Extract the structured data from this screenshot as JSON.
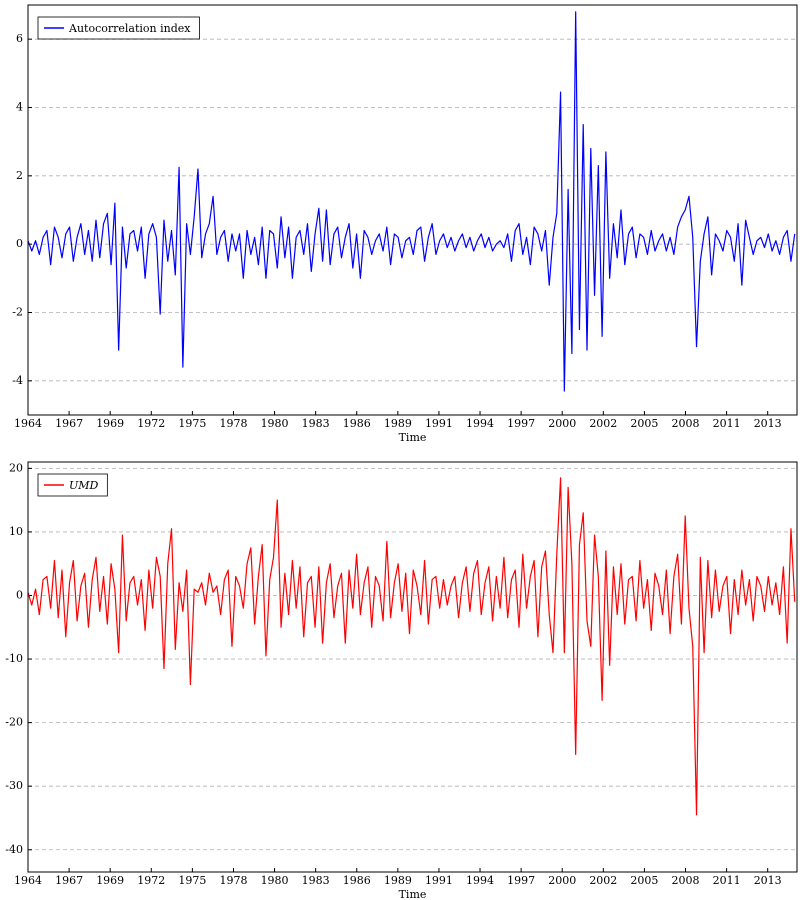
{
  "chart_data": [
    {
      "type": "line",
      "xlabel": "Time",
      "legend": "upper left",
      "grid": true,
      "xlim": [
        1964,
        2014.9
      ],
      "ylim": [
        -5,
        7
      ],
      "yticks": [
        -4,
        -2,
        0,
        2,
        4,
        6
      ],
      "xticks": [
        {
          "value": 1964,
          "label": "1964"
        },
        {
          "value": 1966.72,
          "label": "1967"
        },
        {
          "value": 1969.44,
          "label": "1969"
        },
        {
          "value": 1972.16,
          "label": "1972"
        },
        {
          "value": 1974.88,
          "label": "1975"
        },
        {
          "value": 1977.6,
          "label": "1978"
        },
        {
          "value": 1980.32,
          "label": "1980"
        },
        {
          "value": 1983.04,
          "label": "1983"
        },
        {
          "value": 1985.76,
          "label": "1986"
        },
        {
          "value": 1988.48,
          "label": "1989"
        },
        {
          "value": 1991.2,
          "label": "1991"
        },
        {
          "value": 1993.92,
          "label": "1994"
        },
        {
          "value": 1996.64,
          "label": "1997"
        },
        {
          "value": 1999.36,
          "label": "2000"
        },
        {
          "value": 2002.08,
          "label": "2002"
        },
        {
          "value": 2004.8,
          "label": "2005"
        },
        {
          "value": 2007.52,
          "label": "2008"
        },
        {
          "value": 2010.24,
          "label": "2011"
        },
        {
          "value": 2012.96,
          "label": "2013"
        }
      ],
      "x": [
        1964,
        1964.25,
        1964.5,
        1964.75,
        1965,
        1965.25,
        1965.5,
        1965.75,
        1966,
        1966.25,
        1966.5,
        1966.75,
        1967,
        1967.25,
        1967.5,
        1967.75,
        1968,
        1968.25,
        1968.5,
        1968.75,
        1969,
        1969.25,
        1969.5,
        1969.75,
        1970,
        1970.25,
        1970.5,
        1970.75,
        1971,
        1971.25,
        1971.5,
        1971.75,
        1972,
        1972.25,
        1972.5,
        1972.75,
        1973,
        1973.25,
        1973.5,
        1973.75,
        1974,
        1974.25,
        1974.5,
        1974.75,
        1975,
        1975.25,
        1975.5,
        1975.75,
        1976,
        1976.25,
        1976.5,
        1976.75,
        1977,
        1977.25,
        1977.5,
        1977.75,
        1978,
        1978.25,
        1978.5,
        1978.75,
        1979,
        1979.25,
        1979.5,
        1979.75,
        1980,
        1980.25,
        1980.5,
        1980.75,
        1981,
        1981.25,
        1981.5,
        1981.75,
        1982,
        1982.25,
        1982.5,
        1982.75,
        1983,
        1983.25,
        1983.5,
        1983.75,
        1984,
        1984.25,
        1984.5,
        1984.75,
        1985,
        1985.25,
        1985.5,
        1985.75,
        1986,
        1986.25,
        1986.5,
        1986.75,
        1987,
        1987.25,
        1987.5,
        1987.75,
        1988,
        1988.25,
        1988.5,
        1988.75,
        1989,
        1989.25,
        1989.5,
        1989.75,
        1990,
        1990.25,
        1990.5,
        1990.75,
        1991,
        1991.25,
        1991.5,
        1991.75,
        1992,
        1992.25,
        1992.5,
        1992.75,
        1993,
        1993.25,
        1993.5,
        1993.75,
        1994,
        1994.25,
        1994.5,
        1994.75,
        1995,
        1995.25,
        1995.5,
        1995.75,
        1996,
        1996.25,
        1996.5,
        1996.75,
        1997,
        1997.25,
        1997.5,
        1997.75,
        1998,
        1998.25,
        1998.5,
        1998.75,
        1999,
        1999.25,
        1999.5,
        1999.75,
        2000,
        2000.25,
        2000.5,
        2000.75,
        2001,
        2001.25,
        2001.5,
        2001.75,
        2002,
        2002.25,
        2002.5,
        2002.75,
        2003,
        2003.25,
        2003.5,
        2003.75,
        2004,
        2004.25,
        2004.5,
        2004.75,
        2005,
        2005.25,
        2005.5,
        2005.75,
        2006,
        2006.25,
        2006.5,
        2006.75,
        2007,
        2007.25,
        2007.5,
        2007.75,
        2008,
        2008.25,
        2008.5,
        2008.75,
        2009,
        2009.25,
        2009.5,
        2009.75,
        2010,
        2010.25,
        2010.5,
        2010.75,
        2011,
        2011.25,
        2011.5,
        2011.75,
        2012,
        2012.25,
        2012.5,
        2012.75,
        2013,
        2013.25,
        2013.5,
        2013.75,
        2014,
        2014.25,
        2014.5,
        2014.75
      ],
      "series": [
        {
          "name": "Autocorrelation index",
          "color": "#0000ff",
          "values": [
            0.1,
            -0.2,
            0.1,
            -0.3,
            0.2,
            0.4,
            -0.6,
            0.5,
            0.2,
            -0.4,
            0.3,
            0.5,
            -0.5,
            0.2,
            0.6,
            -0.3,
            0.4,
            -0.5,
            0.7,
            -0.4,
            0.6,
            0.9,
            -0.6,
            1.2,
            -3.1,
            0.5,
            -0.7,
            0.3,
            0.4,
            -0.2,
            0.5,
            -1.0,
            0.3,
            0.6,
            0.2,
            -2.05,
            0.7,
            -0.5,
            0.4,
            -0.9,
            2.25,
            -3.6,
            0.6,
            -0.3,
            0.8,
            2.2,
            -0.4,
            0.3,
            0.6,
            1.4,
            -0.3,
            0.2,
            0.4,
            -0.5,
            0.3,
            -0.2,
            0.3,
            -1.0,
            0.4,
            -0.3,
            0.2,
            -0.6,
            0.5,
            -1.0,
            0.4,
            0.3,
            -0.7,
            0.8,
            -0.4,
            0.5,
            -1.0,
            0.2,
            0.4,
            -0.3,
            0.6,
            -0.8,
            0.3,
            1.05,
            -0.5,
            1.0,
            -0.6,
            0.3,
            0.5,
            -0.4,
            0.2,
            0.6,
            -0.7,
            0.3,
            -1.0,
            0.4,
            0.2,
            -0.3,
            0.1,
            0.3,
            -0.2,
            0.5,
            -0.6,
            0.3,
            0.2,
            -0.4,
            0.1,
            0.2,
            -0.3,
            0.4,
            0.5,
            -0.5,
            0.2,
            0.6,
            -0.3,
            0.1,
            0.3,
            -0.1,
            0.2,
            -0.2,
            0.1,
            0.3,
            -0.1,
            0.2,
            -0.2,
            0.1,
            0.3,
            -0.1,
            0.2,
            -0.2,
            0.0,
            0.1,
            -0.1,
            0.3,
            -0.5,
            0.4,
            0.6,
            -0.3,
            0.2,
            -0.6,
            0.5,
            0.3,
            -0.2,
            0.4,
            -1.2,
            0.2,
            0.9,
            4.45,
            -4.3,
            1.6,
            -3.2,
            6.8,
            -2.5,
            3.5,
            -3.1,
            2.8,
            -1.5,
            2.3,
            -2.7,
            2.7,
            -1.0,
            0.6,
            -0.4,
            1.0,
            -0.6,
            0.3,
            0.5,
            -0.4,
            0.3,
            0.2,
            -0.3,
            0.4,
            -0.2,
            0.1,
            0.3,
            -0.2,
            0.2,
            -0.3,
            0.5,
            0.8,
            1.0,
            1.4,
            0.2,
            -3.0,
            -0.5,
            0.3,
            0.8,
            -0.9,
            0.3,
            0.1,
            -0.2,
            0.4,
            0.2,
            -0.5,
            0.6,
            -1.2,
            0.7,
            0.2,
            -0.3,
            0.1,
            0.2,
            -0.1,
            0.3,
            -0.2,
            0.1,
            -0.3,
            0.2,
            0.4,
            -0.5,
            0.3
          ]
        }
      ]
    },
    {
      "type": "line",
      "xlabel": "Time",
      "legend": "upper left",
      "grid": true,
      "xlim": [
        1964,
        2014.9
      ],
      "ylim": [
        -43.5,
        21
      ],
      "yticks": [
        -40,
        -30,
        -20,
        -10,
        0,
        10,
        20
      ],
      "xticks": [
        {
          "value": 1964,
          "label": "1964"
        },
        {
          "value": 1966.72,
          "label": "1967"
        },
        {
          "value": 1969.44,
          "label": "1969"
        },
        {
          "value": 1972.16,
          "label": "1972"
        },
        {
          "value": 1974.88,
          "label": "1975"
        },
        {
          "value": 1977.6,
          "label": "1978"
        },
        {
          "value": 1980.32,
          "label": "1980"
        },
        {
          "value": 1983.04,
          "label": "1983"
        },
        {
          "value": 1985.76,
          "label": "1986"
        },
        {
          "value": 1988.48,
          "label": "1989"
        },
        {
          "value": 1991.2,
          "label": "1991"
        },
        {
          "value": 1993.92,
          "label": "1994"
        },
        {
          "value": 1996.64,
          "label": "1997"
        },
        {
          "value": 1999.36,
          "label": "2000"
        },
        {
          "value": 2002.08,
          "label": "2002"
        },
        {
          "value": 2004.8,
          "label": "2005"
        },
        {
          "value": 2007.52,
          "label": "2008"
        },
        {
          "value": 2010.24,
          "label": "2011"
        },
        {
          "value": 2012.96,
          "label": "2013"
        }
      ],
      "x": [
        1964,
        1964.25,
        1964.5,
        1964.75,
        1965,
        1965.25,
        1965.5,
        1965.75,
        1966,
        1966.25,
        1966.5,
        1966.75,
        1967,
        1967.25,
        1967.5,
        1967.75,
        1968,
        1968.25,
        1968.5,
        1968.75,
        1969,
        1969.25,
        1969.5,
        1969.75,
        1970,
        1970.25,
        1970.5,
        1970.75,
        1971,
        1971.25,
        1971.5,
        1971.75,
        1972,
        1972.25,
        1972.5,
        1972.75,
        1973,
        1973.25,
        1973.5,
        1973.75,
        1974,
        1974.25,
        1974.5,
        1974.75,
        1975,
        1975.25,
        1975.5,
        1975.75,
        1976,
        1976.25,
        1976.5,
        1976.75,
        1977,
        1977.25,
        1977.5,
        1977.75,
        1978,
        1978.25,
        1978.5,
        1978.75,
        1979,
        1979.25,
        1979.5,
        1979.75,
        1980,
        1980.25,
        1980.5,
        1980.75,
        1981,
        1981.25,
        1981.5,
        1981.75,
        1982,
        1982.25,
        1982.5,
        1982.75,
        1983,
        1983.25,
        1983.5,
        1983.75,
        1984,
        1984.25,
        1984.5,
        1984.75,
        1985,
        1985.25,
        1985.5,
        1985.75,
        1986,
        1986.25,
        1986.5,
        1986.75,
        1987,
        1987.25,
        1987.5,
        1987.75,
        1988,
        1988.25,
        1988.5,
        1988.75,
        1989,
        1989.25,
        1989.5,
        1989.75,
        1990,
        1990.25,
        1990.5,
        1990.75,
        1991,
        1991.25,
        1991.5,
        1991.75,
        1992,
        1992.25,
        1992.5,
        1992.75,
        1993,
        1993.25,
        1993.5,
        1993.75,
        1994,
        1994.25,
        1994.5,
        1994.75,
        1995,
        1995.25,
        1995.5,
        1995.75,
        1996,
        1996.25,
        1996.5,
        1996.75,
        1997,
        1997.25,
        1997.5,
        1997.75,
        1998,
        1998.25,
        1998.5,
        1998.75,
        1999,
        1999.25,
        1999.5,
        1999.75,
        2000,
        2000.25,
        2000.5,
        2000.75,
        2001,
        2001.25,
        2001.5,
        2001.75,
        2002,
        2002.25,
        2002.5,
        2002.75,
        2003,
        2003.25,
        2003.5,
        2003.75,
        2004,
        2004.25,
        2004.5,
        2004.75,
        2005,
        2005.25,
        2005.5,
        2005.75,
        2006,
        2006.25,
        2006.5,
        2006.75,
        2007,
        2007.25,
        2007.5,
        2007.75,
        2008,
        2008.25,
        2008.5,
        2008.75,
        2009,
        2009.25,
        2009.5,
        2009.75,
        2010,
        2010.25,
        2010.5,
        2010.75,
        2011,
        2011.25,
        2011.5,
        2011.75,
        2012,
        2012.25,
        2012.5,
        2012.75,
        2013,
        2013.25,
        2013.5,
        2013.75,
        2014,
        2014.25,
        2014.5,
        2014.75
      ],
      "series": [
        {
          "name": "UMD",
          "color": "#ff0000",
          "values": [
            0.5,
            -1.5,
            1.0,
            -3.0,
            2.5,
            3.0,
            -2.0,
            5.5,
            -3.5,
            4.0,
            -6.5,
            2.0,
            5.5,
            -4.0,
            1.5,
            3.5,
            -5.0,
            2.5,
            6.0,
            -2.5,
            3.0,
            -4.5,
            5.0,
            1.0,
            -9.0,
            9.5,
            -4.0,
            2.0,
            3.0,
            -1.5,
            2.5,
            -5.5,
            4.0,
            -2.0,
            6.0,
            3.0,
            -11.5,
            5.0,
            10.5,
            -8.5,
            2.0,
            -2.5,
            4.0,
            -14.0,
            1.0,
            0.5,
            2.0,
            -1.5,
            3.5,
            0.5,
            1.5,
            -3.0,
            2.5,
            4.0,
            -8.0,
            3.0,
            1.5,
            -2.0,
            5.0,
            7.5,
            -4.5,
            3.0,
            8.0,
            -9.5,
            2.5,
            6.0,
            15.0,
            -5.0,
            3.5,
            -3.0,
            5.5,
            -2.0,
            4.5,
            -6.5,
            2.0,
            3.0,
            -5.0,
            4.5,
            -7.5,
            2.0,
            5.0,
            -3.5,
            1.5,
            3.5,
            -7.5,
            4.0,
            -2.0,
            6.5,
            -3.0,
            2.0,
            4.5,
            -5.0,
            3.0,
            1.5,
            -4.0,
            8.5,
            -3.5,
            2.0,
            5.0,
            -2.5,
            3.5,
            -6.0,
            4.0,
            1.5,
            -3.0,
            5.5,
            -4.5,
            2.5,
            3.0,
            -2.0,
            2.5,
            -1.5,
            1.5,
            3.0,
            -3.5,
            2.0,
            4.5,
            -2.5,
            3.5,
            5.5,
            -3.0,
            2.0,
            4.5,
            -4.0,
            3.0,
            -2.0,
            6.0,
            -3.5,
            2.5,
            4.0,
            -5.0,
            6.5,
            -2.0,
            3.0,
            5.5,
            -6.5,
            4.5,
            7.0,
            -3.0,
            -9.0,
            6.5,
            18.5,
            -9.0,
            17.0,
            5.0,
            -25.0,
            8.0,
            13.0,
            -4.0,
            -8.0,
            9.5,
            3.0,
            -16.5,
            7.0,
            -11.0,
            4.5,
            -3.0,
            5.0,
            -4.5,
            2.5,
            3.0,
            -4.0,
            5.5,
            -2.0,
            2.5,
            -5.5,
            3.5,
            1.5,
            -3.0,
            4.0,
            -6.0,
            3.0,
            6.5,
            -4.5,
            12.5,
            -2.0,
            -8.0,
            -34.5,
            6.0,
            -9.0,
            5.5,
            -3.5,
            4.0,
            -2.5,
            1.5,
            3.0,
            -6.0,
            2.5,
            -3.0,
            4.0,
            -1.5,
            2.5,
            -4.0,
            3.0,
            1.5,
            -2.5,
            3.0,
            -1.5,
            2.0,
            -3.0,
            4.5,
            -7.5,
            10.5,
            -1.0
          ]
        }
      ]
    }
  ]
}
